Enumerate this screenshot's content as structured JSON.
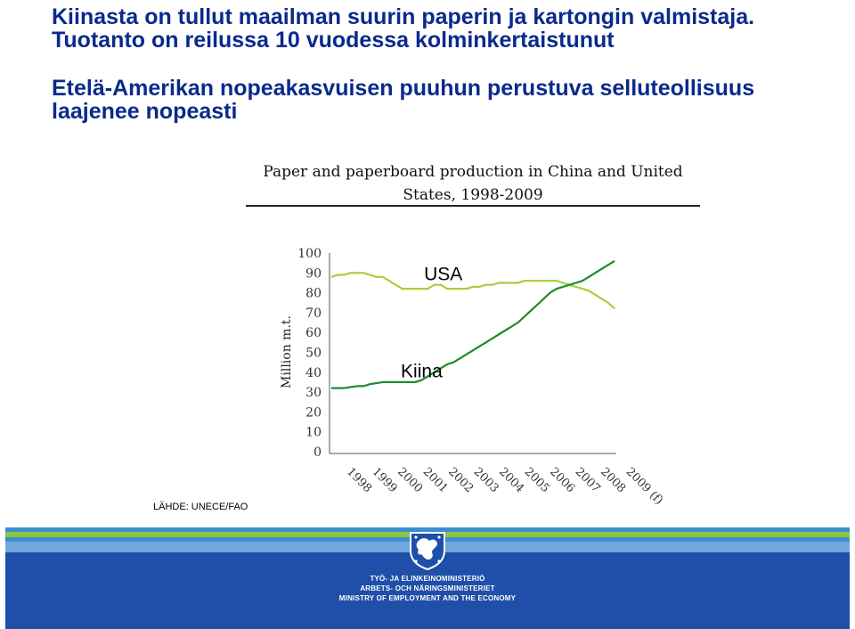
{
  "slide": {
    "heading_line1": "Kiinasta on tullut maailman suurin paperin ja kartongin valmistaja.",
    "heading_line2": "Tuotanto on reilussa 10 vuodessa kolminkertaistunut",
    "heading_line3": "Etelä-Amerikan nopeakasvuisen puuhun perustuva selluteollisuus",
    "heading_line4": "laajenee nopeasti",
    "source": "LÄHDE: UNECE/FAO"
  },
  "chart_data": {
    "type": "line",
    "title_line1": "Paper and paperboard production in China and United",
    "title_line2": "States, 1998-2009",
    "ylabel": "Million m.t.",
    "ylim": [
      0,
      100
    ],
    "yticks": [
      "0",
      "10",
      "20",
      "30",
      "40",
      "50",
      "60",
      "70",
      "80",
      "90",
      "100"
    ],
    "xticks": [
      "1998",
      "1999",
      "2000",
      "2001",
      "2002",
      "2003",
      "2004",
      "2005",
      "2006",
      "2007",
      "2008",
      "2009 (f)"
    ],
    "x": [
      1998,
      1998.25,
      1998.5,
      1998.75,
      1999,
      1999.25,
      1999.5,
      1999.75,
      2000,
      2000.25,
      2000.5,
      2000.75,
      2001,
      2001.25,
      2001.5,
      2001.75,
      2002,
      2002.25,
      2002.5,
      2002.75,
      2003,
      2003.25,
      2003.5,
      2003.75,
      2004,
      2004.25,
      2004.5,
      2004.75,
      2005,
      2005.25,
      2005.5,
      2005.75,
      2006,
      2006.25,
      2006.5,
      2006.75,
      2007,
      2007.25,
      2007.5,
      2007.75,
      2008,
      2008.25,
      2008.5,
      2008.75,
      2009
    ],
    "series": [
      {
        "name": "USA",
        "color": "#a6cf3a",
        "values": [
          88,
          89,
          89,
          90,
          90,
          90,
          89,
          88,
          88,
          86,
          84,
          82,
          82,
          82,
          82,
          82,
          84,
          84,
          82,
          82,
          82,
          82,
          83,
          83,
          84,
          84,
          85,
          85,
          85,
          85,
          86,
          86,
          86,
          86,
          86,
          86,
          85,
          84,
          83,
          82,
          81,
          79,
          77,
          75,
          72
        ]
      },
      {
        "name": "Kiina",
        "color": "#1e8a2a",
        "values": [
          32,
          32,
          32,
          32.5,
          33,
          33,
          34,
          34.5,
          35,
          35,
          35,
          35,
          35,
          35,
          36,
          38,
          40,
          42,
          44,
          45,
          47,
          49,
          51,
          53,
          55,
          57,
          59,
          61,
          63,
          65,
          68,
          71,
          74,
          77,
          80,
          82,
          83,
          84,
          85,
          86,
          88,
          90,
          92,
          94,
          96
        ]
      }
    ],
    "annotations": [
      {
        "text": "USA",
        "x": 2001.6,
        "y": 90
      },
      {
        "text": "Kiina",
        "x": 2000.7,
        "y": 41
      }
    ]
  },
  "branding": {
    "colors": {
      "footer": "#1f4fa8",
      "heading": "#0a2a8c"
    },
    "logo_icon": "finnish-lion-crest-icon",
    "ministry_fi": "TYÖ- JA ELINKEINOMINISTERIÖ",
    "ministry_sv": "ARBETS- OCH NÄRINGSMINISTERIET",
    "ministry_en": "MINISTRY OF EMPLOYMENT AND THE ECONOMY"
  }
}
